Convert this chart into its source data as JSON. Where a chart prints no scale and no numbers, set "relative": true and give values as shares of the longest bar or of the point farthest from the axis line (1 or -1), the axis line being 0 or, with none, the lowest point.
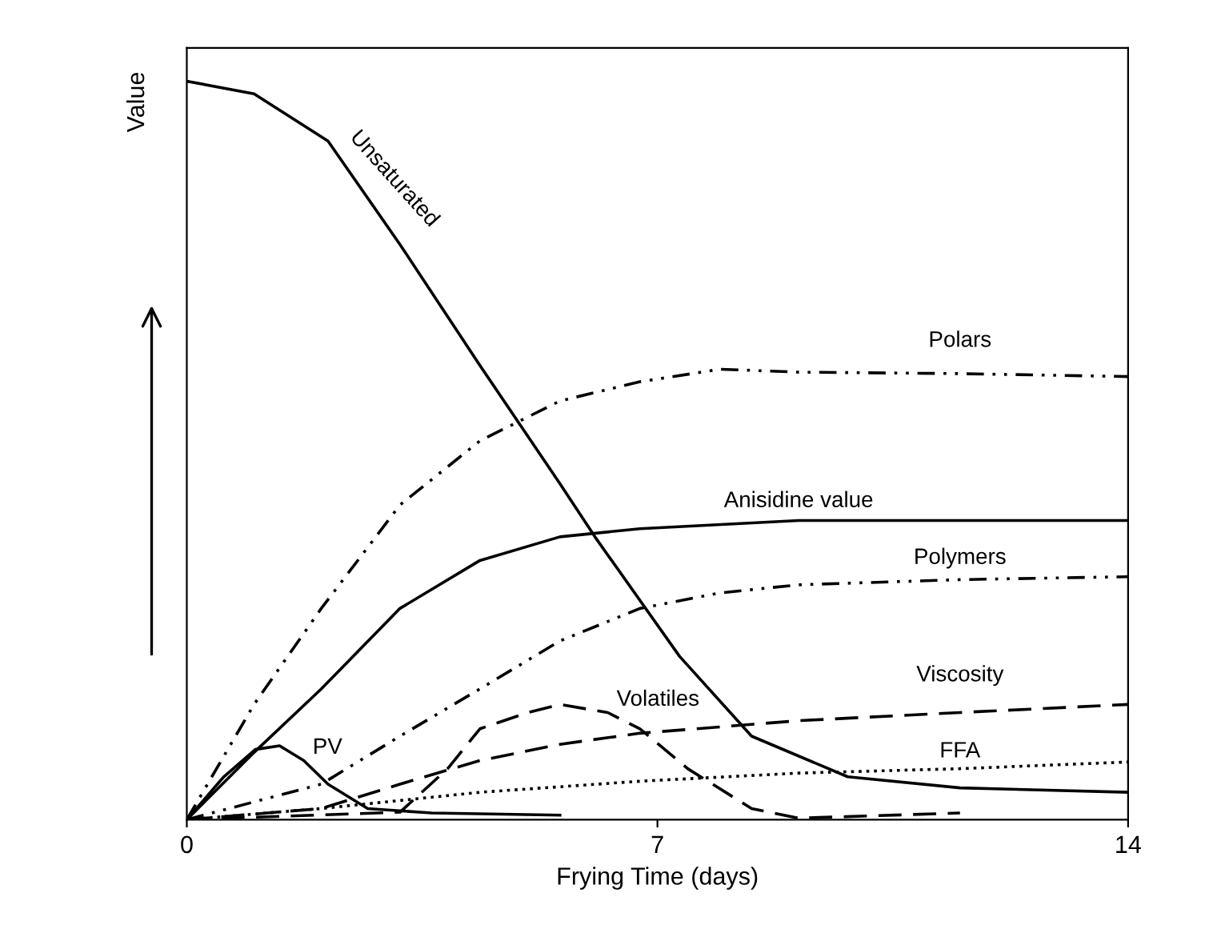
{
  "chart_data": {
    "type": "line",
    "relative": true,
    "xlabel": "Frying Time (days)",
    "ylabel": "Value",
    "xlim": [
      0,
      14
    ],
    "xticks": [
      0,
      7,
      14
    ],
    "grid": false,
    "legend": false,
    "marker": "none",
    "series": [
      {
        "name": "Unsaturated",
        "color": "#000000",
        "line_style": "solid",
        "x": [
          0,
          1,
          2.1,
          3.17,
          4.36,
          5.55,
          6.07,
          7.33,
          8.4,
          9.83,
          11.5,
          14
        ],
        "values": [
          1.0,
          0.983,
          0.919,
          0.779,
          0.615,
          0.455,
          0.383,
          0.221,
          0.113,
          0.058,
          0.043,
          0.037
        ]
      },
      {
        "name": "Polars",
        "color": "#000000",
        "line_style": "dashdot",
        "x": [
          0,
          1,
          2,
          3.17,
          4.36,
          5.55,
          6.74,
          7.93,
          9.1,
          11.5,
          14
        ],
        "values": [
          0,
          0.156,
          0.286,
          0.426,
          0.513,
          0.567,
          0.593,
          0.61,
          0.606,
          0.604,
          0.6
        ]
      },
      {
        "name": "Anisidine value",
        "color": "#000000",
        "line_style": "solid",
        "x": [
          0,
          1,
          2,
          3.17,
          4.36,
          5.55,
          6.74,
          9.1,
          14
        ],
        "values": [
          0,
          0.091,
          0.177,
          0.286,
          0.351,
          0.383,
          0.394,
          0.405,
          0.405
        ]
      },
      {
        "name": "Polymers",
        "color": "#000000",
        "line_style": "dashdot",
        "x": [
          0,
          2,
          3.17,
          4.36,
          5.55,
          6.74,
          7.93,
          9.1,
          11.5,
          14
        ],
        "values": [
          0,
          0.048,
          0.113,
          0.177,
          0.242,
          0.286,
          0.307,
          0.318,
          0.325,
          0.329
        ]
      },
      {
        "name": "Volatiles",
        "color": "#000000",
        "line_style": "dashed",
        "x": [
          0,
          3.17,
          3.88,
          4.36,
          5.07,
          5.55,
          6.26,
          6.74,
          7.45,
          8.4,
          9.1,
          9.8,
          11.5
        ],
        "values": [
          0,
          0.01,
          0.069,
          0.123,
          0.145,
          0.156,
          0.145,
          0.123,
          0.069,
          0.015,
          0.002,
          0.004,
          0.009
        ]
      },
      {
        "name": "Viscosity",
        "color": "#000000",
        "line_style": "dashed",
        "x": [
          0,
          2,
          3.17,
          4.36,
          5.55,
          6.74,
          9.1,
          11.5,
          14
        ],
        "values": [
          0,
          0.015,
          0.048,
          0.08,
          0.102,
          0.117,
          0.134,
          0.145,
          0.156
        ]
      },
      {
        "name": "FFA",
        "color": "#000000",
        "line_style": "dotted",
        "x": [
          0,
          2,
          4.36,
          6.74,
          9.1,
          11.5,
          14
        ],
        "values": [
          0,
          0.015,
          0.037,
          0.052,
          0.063,
          0.069,
          0.078
        ]
      },
      {
        "name": "PV",
        "color": "#000000",
        "line_style": "solid",
        "x": [
          0,
          0.55,
          1.02,
          1.38,
          1.74,
          2.1,
          2.69,
          3.64,
          5.55
        ],
        "values": [
          0,
          0.058,
          0.095,
          0.1,
          0.08,
          0.048,
          0.015,
          0.009,
          0.006
        ]
      }
    ]
  }
}
